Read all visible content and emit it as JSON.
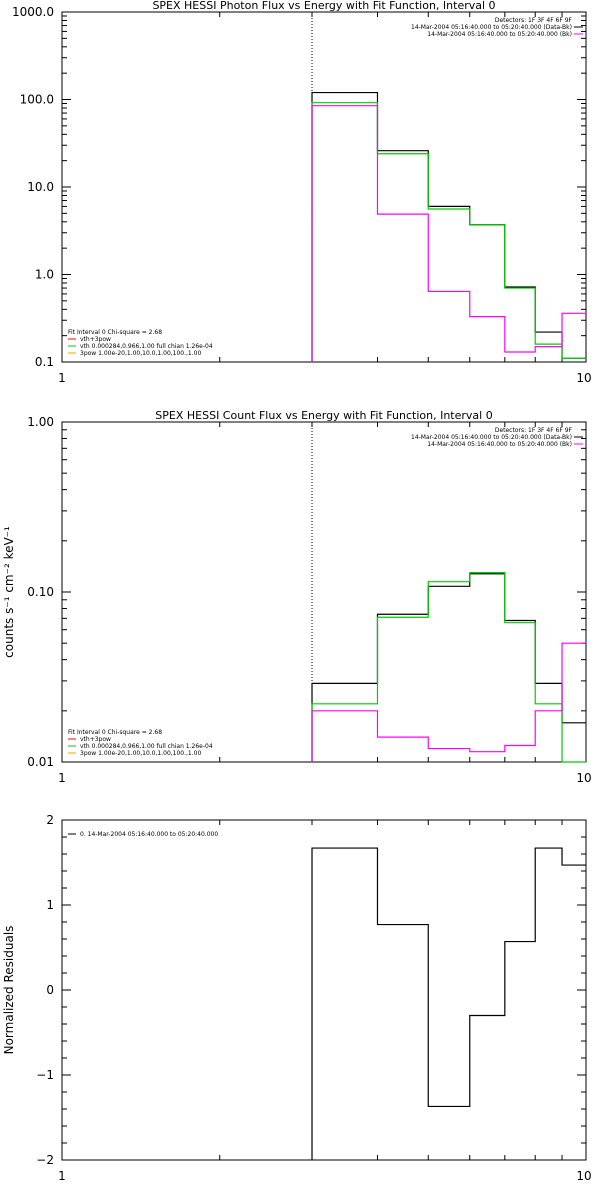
{
  "chart_data": [
    {
      "type": "line",
      "title": "SPEX HESSI Photon Flux vs Energy with Fit Function, Interval 0",
      "xlabel": "",
      "ylabel": "",
      "xscale": "log",
      "yscale": "log",
      "xlim": [
        1,
        10
      ],
      "ylim": [
        0.1,
        1000
      ],
      "x_ticks": [
        "1",
        "10"
      ],
      "y_ticks": [
        "0.1",
        "1.0",
        "10.0",
        "100.0",
        "1000.0"
      ],
      "y_tick_values": [
        0.1,
        1,
        10,
        100,
        1000
      ],
      "vline_x": 3.0,
      "bin_edges": [
        3.0,
        4.0,
        5.0,
        6.0,
        7.0,
        8.0,
        9.0,
        10.0
      ],
      "legend_right": {
        "position": "top-right",
        "lines": [
          "Detectors: 1F 3F 4F 6F 9F",
          "14-Mar-2004 05:16:40.000 to 05:20:40.000 (Data-Bk)",
          "14-Mar-2004 05:16:40.000 to 05:20:40.000 (Bk)"
        ],
        "colors": [
          "",
          "#000000",
          "#ff00ff"
        ]
      },
      "legend_left": {
        "position": "bottom-left",
        "header": "Fit Interval 0   Chi-square = 2.68",
        "entries": [
          {
            "label": "vth+3pow",
            "color": "#ff0000"
          },
          {
            "label": "vth 0.000284,0.966,1.00  full chian 1.26e-04",
            "color": "#00cc00"
          },
          {
            "label": "3pow 1.00e-20,1.00,10.0,1.00,100.,1.00",
            "color": "#ffa500"
          }
        ]
      },
      "series": [
        {
          "color": "#000000",
          "values": [
            120,
            26,
            6.0,
            3.7,
            0.72,
            0.22,
            0.11
          ]
        },
        {
          "color": "#00cc00",
          "values": [
            92,
            24,
            5.6,
            3.7,
            0.7,
            0.16,
            0.11
          ]
        },
        {
          "color": "#ff00ff",
          "values": [
            85,
            4.9,
            0.64,
            0.33,
            0.13,
            0.15,
            0.36
          ]
        }
      ]
    },
    {
      "type": "line",
      "title": "SPEX HESSI Count Flux vs Energy with Fit Function, Interval 0",
      "xlabel": "",
      "ylabel": "counts s⁻¹ cm⁻² keV⁻¹",
      "xscale": "log",
      "yscale": "log",
      "xlim": [
        1,
        10
      ],
      "ylim": [
        0.01,
        1.0
      ],
      "x_ticks": [
        "1",
        "10"
      ],
      "y_ticks": [
        "0.01",
        "0.10",
        "1.00"
      ],
      "y_tick_values": [
        0.01,
        0.1,
        1.0
      ],
      "vline_x": 3.0,
      "bin_edges": [
        3.0,
        4.0,
        5.0,
        6.0,
        7.0,
        8.0,
        9.0,
        10.0
      ],
      "legend_right": {
        "position": "top-right",
        "lines": [
          "Detectors: 1F 3F 4F 6F 9F",
          "14-Mar-2004 05:16:40.000 to 05:20:40.000 (Data-Bk)",
          "14-Mar-2004 05:16:40.000 to 05:20:40.000 (Bk)"
        ],
        "colors": [
          "",
          "#000000",
          "#ff00ff"
        ]
      },
      "legend_left": {
        "position": "bottom-left",
        "header": "Fit Interval 0   Chi-square = 2.68",
        "entries": [
          {
            "label": "vth+3pow",
            "color": "#ff0000"
          },
          {
            "label": "vth 0.000284,0.966,1.00  full chian 1.26e-04",
            "color": "#00cc00"
          },
          {
            "label": "3pow 1.00e-20,1.00,10.0,1.00,100.,1.00",
            "color": "#ffa500"
          }
        ]
      },
      "series": [
        {
          "color": "#000000",
          "values": [
            0.029,
            0.074,
            0.108,
            0.128,
            0.068,
            0.029,
            0.017
          ]
        },
        {
          "color": "#00cc00",
          "values": [
            0.022,
            0.071,
            0.115,
            0.13,
            0.066,
            0.022,
            0.01
          ]
        },
        {
          "color": "#ff00ff",
          "values": [
            0.02,
            0.014,
            0.012,
            0.0115,
            0.0125,
            0.02,
            0.05
          ]
        }
      ]
    },
    {
      "type": "line",
      "title": "",
      "xlabel": "",
      "ylabel": "Normalized Residuals",
      "xscale": "log",
      "yscale": "linear",
      "xlim": [
        1,
        10
      ],
      "ylim": [
        -2,
        2
      ],
      "x_ticks": [
        "1",
        "10"
      ],
      "y_ticks": [
        "−2",
        "−1",
        "0",
        "1",
        "2"
      ],
      "y_tick_values": [
        -2,
        -1,
        0,
        1,
        2
      ],
      "bin_edges": [
        3.0,
        4.0,
        5.0,
        6.0,
        7.0,
        8.0,
        9.0,
        10.0
      ],
      "legend_left": {
        "position": "top-left",
        "header": "",
        "entries": [
          {
            "label": "0. 14-Mar-2004 05:16:40.000 to 05:20:40.000",
            "color": "#000000"
          }
        ]
      },
      "series": [
        {
          "color": "#000000",
          "values": [
            1.67,
            0.77,
            -1.37,
            -0.3,
            0.57,
            1.67,
            1.47
          ]
        }
      ]
    }
  ]
}
